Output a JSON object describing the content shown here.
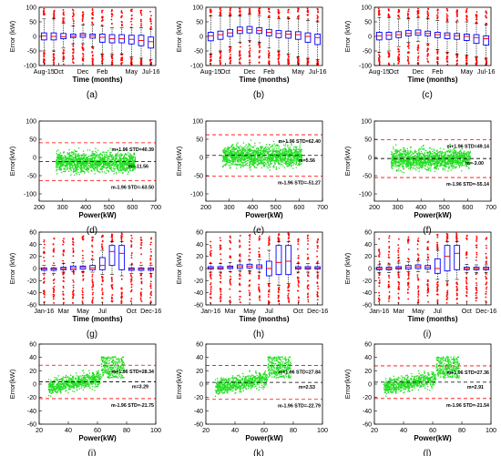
{
  "colors": {
    "box": "#0000ff",
    "median": "#ff0000",
    "outlier": "#ff0000",
    "scatter": "#22dd22",
    "median_line": "#000000",
    "band_line": "#ff0000"
  },
  "chart_data": [
    {
      "label": "(a)",
      "type": "box",
      "xlabel": "Time (months)",
      "ylabel": "Error (kW)",
      "ylim": [
        -100,
        100
      ],
      "yticks": [
        -100,
        -50,
        0,
        50,
        100
      ],
      "xticklabels": [
        "Aug-15",
        "Oct",
        "Dec",
        "Feb",
        "May",
        "Jul-16"
      ],
      "xtick_positions": [
        1,
        2.5,
        5,
        7,
        10,
        12
      ],
      "n_boxes": 12,
      "medians": [
        2,
        0,
        -1,
        1,
        4,
        2,
        -3,
        -8,
        -8,
        -10,
        -14,
        -18
      ],
      "q1": [
        -12,
        -12,
        -8,
        -4,
        -3,
        -6,
        -20,
        -22,
        -22,
        -26,
        -32,
        -40
      ],
      "q3": [
        12,
        12,
        10,
        8,
        10,
        8,
        8,
        6,
        6,
        4,
        4,
        -2
      ],
      "whisker_low": [
        -50,
        -50,
        -40,
        -25,
        -25,
        -35,
        -60,
        -60,
        -60,
        -70,
        -75,
        -80
      ],
      "whisker_high": [
        60,
        60,
        45,
        35,
        40,
        40,
        35,
        30,
        30,
        30,
        30,
        25
      ]
    },
    {
      "label": "(b)",
      "type": "box",
      "xlabel": "Time (months)",
      "ylabel": "Error (kW)",
      "ylim": [
        -100,
        100
      ],
      "yticks": [
        -100,
        -50,
        0,
        50,
        100
      ],
      "xticklabels": [
        "Aug-15",
        "Oct",
        "Dec",
        "Feb",
        "May",
        "Jul-16"
      ],
      "xtick_positions": [
        1,
        2.5,
        5,
        7,
        10,
        12
      ],
      "n_boxes": 12,
      "medians": [
        2,
        6,
        12,
        20,
        24,
        20,
        14,
        10,
        8,
        6,
        0,
        -4
      ],
      "q1": [
        -15,
        -10,
        0,
        10,
        12,
        10,
        2,
        -4,
        -6,
        -10,
        -20,
        -28
      ],
      "q3": [
        14,
        18,
        24,
        32,
        34,
        30,
        24,
        20,
        18,
        16,
        12,
        8
      ],
      "whisker_low": [
        -60,
        -50,
        -35,
        -20,
        -15,
        -20,
        -40,
        -50,
        -60,
        -70,
        -75,
        -80
      ],
      "whisker_high": [
        70,
        70,
        70,
        70,
        75,
        70,
        65,
        60,
        60,
        60,
        55,
        50
      ]
    },
    {
      "label": "(c)",
      "type": "box",
      "xlabel": "Time (months)",
      "ylabel": "Error (kW)",
      "ylim": [
        -100,
        100
      ],
      "yticks": [
        -100,
        -50,
        0,
        50,
        100
      ],
      "xticklabels": [
        "Aug-15",
        "Oct",
        "Dec",
        "Feb",
        "May",
        "Jul-16"
      ],
      "xtick_positions": [
        1,
        2.5,
        5,
        7,
        10,
        12
      ],
      "n_boxes": 12,
      "medians": [
        2,
        4,
        6,
        10,
        12,
        10,
        6,
        4,
        2,
        0,
        -4,
        -8
      ],
      "q1": [
        -12,
        -10,
        -4,
        2,
        4,
        2,
        -4,
        -8,
        -10,
        -14,
        -24,
        -30
      ],
      "q3": [
        14,
        14,
        16,
        20,
        22,
        18,
        14,
        12,
        10,
        8,
        6,
        2
      ],
      "whisker_low": [
        -55,
        -50,
        -35,
        -20,
        -18,
        -25,
        -45,
        -55,
        -60,
        -65,
        -70,
        -75
      ],
      "whisker_high": [
        65,
        65,
        60,
        60,
        65,
        60,
        55,
        50,
        50,
        50,
        45,
        40
      ]
    },
    {
      "label": "(d)",
      "type": "scatter",
      "xlabel": "Power(kW)",
      "ylabel": "Error(kW)",
      "xlim": [
        200,
        700
      ],
      "xticks": [
        200,
        300,
        400,
        500,
        600,
        700
      ],
      "ylim": [
        -120,
        100
      ],
      "yticks": [
        -100,
        -50,
        0,
        50,
        100
      ],
      "cloud_x": [
        270,
        610
      ],
      "mean": -11.56,
      "upper": 40.39,
      "lower": -63.5,
      "annotations": {
        "upper": "m+1.96 STD=40.39",
        "mean": "m=-11.56",
        "lower": "m-1.96 STD=-63.50"
      }
    },
    {
      "label": "(e)",
      "type": "scatter",
      "xlabel": "Power(kW)",
      "ylabel": "Error(kW)",
      "xlim": [
        200,
        700
      ],
      "xticks": [
        200,
        300,
        400,
        500,
        600,
        700
      ],
      "ylim": [
        -120,
        100
      ],
      "yticks": [
        -100,
        -50,
        0,
        50,
        100
      ],
      "cloud_x": [
        270,
        610
      ],
      "mean": 5.56,
      "upper": 62.4,
      "lower": -51.27,
      "annotations": {
        "upper": "m+1.96 STD=62.40",
        "mean": "m=5.56",
        "lower": "m-1.96 STD=-51.27"
      }
    },
    {
      "label": "(f)",
      "type": "scatter",
      "xlabel": "Power(kW)",
      "ylabel": "Error(kW)",
      "xlim": [
        200,
        700
      ],
      "xticks": [
        200,
        300,
        400,
        500,
        600,
        700
      ],
      "ylim": [
        -120,
        100
      ],
      "yticks": [
        -100,
        -50,
        0,
        50,
        100
      ],
      "cloud_x": [
        270,
        610
      ],
      "mean": -3.0,
      "upper": 49.14,
      "lower": -55.14,
      "annotations": {
        "upper": "m+1.96 STD=49.14",
        "mean": "m=-3.00",
        "lower": "m-1.96 STD=-55.14"
      }
    },
    {
      "label": "(g)",
      "type": "box",
      "xlabel": "Time (months)",
      "ylabel": "Error (kW)",
      "ylim": [
        -60,
        60
      ],
      "yticks": [
        -60,
        -40,
        -20,
        0,
        20,
        40,
        60
      ],
      "xticklabels": [
        "Jan-16",
        "Mar",
        "May",
        "Jul",
        "Oct",
        "Dec-16"
      ],
      "xtick_positions": [
        1,
        3,
        5,
        7,
        10,
        12
      ],
      "n_boxes": 12,
      "medians": [
        -1,
        -1,
        0,
        1,
        2,
        1,
        5,
        28,
        25,
        -1,
        -1,
        -1
      ],
      "q1": [
        -3,
        -3,
        -2,
        -2,
        -1,
        -2,
        -2,
        5,
        -2,
        -3,
        -3,
        -3
      ],
      "q3": [
        1,
        1,
        2,
        4,
        4,
        5,
        18,
        38,
        38,
        1,
        1,
        1
      ],
      "whisker_low": [
        -8,
        -8,
        -6,
        -5,
        -5,
        -6,
        -10,
        -10,
        -12,
        -8,
        -8,
        -8
      ],
      "whisker_high": [
        5,
        5,
        8,
        10,
        12,
        14,
        30,
        44,
        44,
        6,
        5,
        5
      ]
    },
    {
      "label": "(h)",
      "type": "box",
      "xlabel": "Time (months)",
      "ylabel": "Error (kW)",
      "ylim": [
        -60,
        60
      ],
      "yticks": [
        -60,
        -40,
        -20,
        0,
        20,
        40,
        60
      ],
      "xticklabels": [
        "Jan-16",
        "Mar",
        "May",
        "Jul",
        "Oct",
        "Dec-16"
      ],
      "xtick_positions": [
        1,
        3,
        5,
        7,
        10,
        12
      ],
      "n_boxes": 12,
      "medians": [
        1,
        1,
        2,
        3,
        4,
        3,
        0,
        10,
        12,
        1,
        1,
        1
      ],
      "q1": [
        -1,
        -1,
        0,
        0,
        1,
        0,
        -12,
        -10,
        -10,
        -1,
        -1,
        -1
      ],
      "q3": [
        3,
        3,
        4,
        6,
        7,
        6,
        12,
        38,
        38,
        3,
        3,
        3
      ],
      "whisker_low": [
        -6,
        -6,
        -5,
        -4,
        -4,
        -6,
        -25,
        -28,
        -25,
        -6,
        -6,
        -6
      ],
      "whisker_high": [
        8,
        8,
        10,
        12,
        14,
        14,
        30,
        44,
        44,
        8,
        8,
        8
      ]
    },
    {
      "label": "(i)",
      "type": "box",
      "xlabel": "Time (months)",
      "ylabel": "Error (kW)",
      "ylim": [
        -60,
        60
      ],
      "yticks": [
        -60,
        -40,
        -20,
        0,
        20,
        40,
        60
      ],
      "xticklabels": [
        "Jan-16",
        "Mar",
        "May",
        "Jul",
        "Oct",
        "Dec-16"
      ],
      "xtick_positions": [
        1,
        3,
        5,
        7,
        10,
        12
      ],
      "n_boxes": 12,
      "medians": [
        0,
        0,
        1,
        2,
        3,
        2,
        0,
        20,
        25,
        0,
        0,
        0
      ],
      "q1": [
        -2,
        -2,
        -1,
        -1,
        0,
        -1,
        -8,
        -4,
        -2,
        -2,
        -2,
        -2
      ],
      "q3": [
        2,
        2,
        3,
        5,
        6,
        5,
        16,
        38,
        38,
        2,
        2,
        2
      ],
      "whisker_low": [
        -7,
        -7,
        -6,
        -5,
        -5,
        -6,
        -18,
        -20,
        -18,
        -7,
        -7,
        -7
      ],
      "whisker_high": [
        6,
        6,
        9,
        11,
        13,
        14,
        30,
        44,
        44,
        7,
        6,
        6
      ]
    },
    {
      "label": "(j)",
      "type": "scatter",
      "xlabel": "Power(kW)",
      "ylabel": "Error(kW)",
      "xlim": [
        20,
        100
      ],
      "xticks": [
        20,
        40,
        60,
        80,
        100
      ],
      "ylim": [
        -60,
        60
      ],
      "yticks": [
        -60,
        -40,
        -20,
        0,
        20,
        40,
        60
      ],
      "cloud_x": [
        26,
        78
      ],
      "mean": 3.29,
      "upper": 28.34,
      "lower": -21.75,
      "annotations": {
        "upper": "m+1.96 STD=28.34",
        "mean": "m=3.29",
        "lower": "m-1.96 STD=-21.75"
      }
    },
    {
      "label": "(k)",
      "type": "scatter",
      "xlabel": "Power(kW)",
      "ylabel": "Error(kW)",
      "xlim": [
        20,
        100
      ],
      "xticks": [
        20,
        40,
        60,
        80,
        100
      ],
      "ylim": [
        -60,
        60
      ],
      "yticks": [
        -60,
        -40,
        -20,
        0,
        20,
        40,
        60
      ],
      "cloud_x": [
        26,
        78
      ],
      "mean": 2.53,
      "upper": 27.84,
      "lower": -22.79,
      "annotations": {
        "upper": "m+1.96 STD=27.84",
        "mean": "m=2.53",
        "lower": "m-1.96 STD=-22.79"
      }
    },
    {
      "label": "(l)",
      "type": "scatter",
      "xlabel": "Power(kW)",
      "ylabel": "Error(kW)",
      "xlim": [
        20,
        100
      ],
      "xticks": [
        20,
        40,
        60,
        80,
        100
      ],
      "ylim": [
        -60,
        60
      ],
      "yticks": [
        -60,
        -40,
        -20,
        0,
        20,
        40,
        60
      ],
      "cloud_x": [
        26,
        78
      ],
      "mean": 2.91,
      "upper": 27.36,
      "lower": -21.54,
      "annotations": {
        "upper": "m+1.96 STD=27.36",
        "mean": "m=2.91",
        "lower": "m-1.96 STD=-21.54"
      }
    }
  ]
}
